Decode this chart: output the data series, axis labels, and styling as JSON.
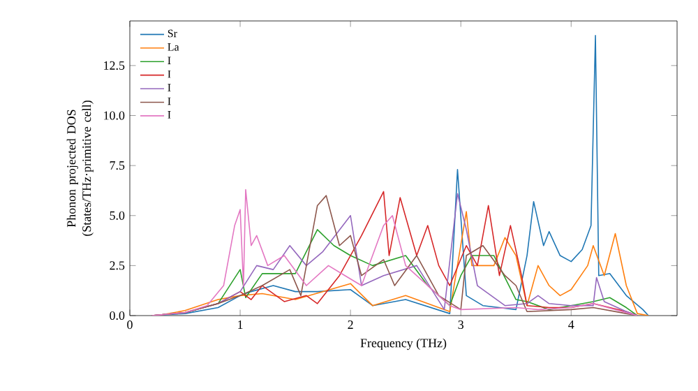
{
  "chart_data": {
    "type": "line",
    "xlabel": "Frequency (THz)",
    "ylabel": "Phonon projected DOS\n(States/THz·primitive cell)",
    "xlim": [
      0,
      4.96
    ],
    "ylim": [
      0,
      14.73
    ],
    "xticks": [
      0,
      1,
      2,
      3,
      4
    ],
    "yticks": [
      {
        "value": 0,
        "label": "0.0"
      },
      {
        "value": 2.5,
        "label": "2.5"
      },
      {
        "value": 5,
        "label": "5.0"
      },
      {
        "value": 7.5,
        "label": "7.5"
      },
      {
        "value": 10,
        "label": "10.0"
      },
      {
        "value": 12.5,
        "label": "12.5"
      }
    ],
    "legend": "top left",
    "grid": false,
    "marker": "none",
    "line_style": "solid",
    "series": [
      {
        "name": "Sr",
        "color": "#1f77b4",
        "x": [
          0.2,
          0.5,
          0.8,
          1.0,
          1.1,
          1.3,
          1.5,
          1.7,
          2.0,
          2.2,
          2.5,
          2.9,
          2.97,
          3.05,
          3.2,
          3.5,
          3.6,
          3.66,
          3.75,
          3.8,
          3.9,
          4.0,
          4.1,
          4.18,
          4.22,
          4.25,
          4.35,
          4.5,
          4.65,
          4.7
        ],
        "values": [
          0,
          0.1,
          0.4,
          1.0,
          1.2,
          1.5,
          1.2,
          1.2,
          1.3,
          0.5,
          0.8,
          0.1,
          7.3,
          1.0,
          0.5,
          0.3,
          3.0,
          5.7,
          3.5,
          4.2,
          3.0,
          2.7,
          3.3,
          4.5,
          14.0,
          2.0,
          2.1,
          1.0,
          0.3,
          0
        ]
      },
      {
        "name": "La",
        "color": "#ff7f0e",
        "x": [
          0.3,
          0.5,
          0.8,
          1.0,
          1.2,
          1.5,
          2.0,
          2.2,
          2.5,
          2.9,
          3.05,
          3.1,
          3.3,
          3.4,
          3.5,
          3.6,
          3.7,
          3.8,
          3.9,
          4.0,
          4.15,
          4.2,
          4.3,
          4.4,
          4.5,
          4.6,
          4.7
        ],
        "values": [
          0.05,
          0.25,
          0.8,
          1.0,
          1.1,
          0.8,
          1.6,
          0.5,
          1.0,
          0.2,
          5.2,
          2.5,
          2.5,
          3.9,
          3.0,
          0.5,
          2.5,
          1.5,
          1.0,
          1.3,
          2.5,
          3.5,
          2.0,
          4.1,
          1.5,
          0.1,
          0
        ]
      },
      {
        "name": "I",
        "color": "#2ca02c",
        "x": [
          0.2,
          0.5,
          0.8,
          1.0,
          1.05,
          1.2,
          1.5,
          1.7,
          1.85,
          2.0,
          2.2,
          2.5,
          2.7,
          2.9,
          3.0,
          3.1,
          3.3,
          3.5,
          3.6,
          3.8,
          4.0,
          4.2,
          4.35,
          4.5,
          4.6
        ],
        "values": [
          0,
          0.15,
          0.6,
          2.3,
          0.9,
          2.1,
          2.1,
          4.3,
          3.5,
          3.0,
          2.5,
          3.0,
          1.5,
          0.5,
          2.0,
          3.0,
          3.0,
          0.8,
          0.7,
          0.3,
          0.5,
          0.7,
          0.9,
          0.4,
          0
        ]
      },
      {
        "name": "I",
        "color": "#d62728",
        "x": [
          0.2,
          0.5,
          0.8,
          1.0,
          1.1,
          1.2,
          1.4,
          1.6,
          1.7,
          1.9,
          2.1,
          2.3,
          2.35,
          2.45,
          2.6,
          2.7,
          2.8,
          2.9,
          3.05,
          3.15,
          3.25,
          3.35,
          3.45,
          3.55,
          3.6,
          3.8,
          4.0,
          4.2,
          4.5,
          4.6
        ],
        "values": [
          0,
          0.15,
          0.6,
          1.2,
          0.8,
          1.5,
          0.7,
          1.0,
          0.6,
          2.0,
          4.0,
          6.2,
          3.0,
          5.9,
          3.0,
          4.5,
          2.5,
          1.5,
          3.5,
          2.5,
          5.5,
          2.0,
          4.5,
          2.0,
          0.5,
          0.4,
          0.4,
          0.6,
          0.2,
          0
        ]
      },
      {
        "name": "I",
        "color": "#9467bd",
        "x": [
          0.2,
          0.5,
          0.8,
          1.0,
          1.15,
          1.3,
          1.45,
          1.6,
          1.75,
          2.0,
          2.1,
          2.3,
          2.6,
          2.85,
          2.97,
          3.05,
          3.15,
          3.4,
          3.6,
          3.7,
          3.8,
          4.0,
          4.2,
          4.23,
          4.3,
          4.5,
          4.6
        ],
        "values": [
          0,
          0.15,
          0.6,
          1.2,
          2.5,
          2.3,
          3.5,
          2.5,
          3.2,
          5.0,
          1.5,
          2.0,
          2.5,
          0.3,
          6.1,
          4.3,
          1.5,
          0.5,
          0.6,
          1.0,
          0.6,
          0.5,
          0.5,
          1.9,
          0.7,
          0.2,
          0
        ]
      },
      {
        "name": "I",
        "color": "#8c564b",
        "x": [
          0.2,
          0.5,
          0.8,
          1.0,
          1.2,
          1.45,
          1.55,
          1.7,
          1.78,
          1.9,
          2.0,
          2.1,
          2.3,
          2.4,
          2.6,
          2.8,
          3.0,
          3.05,
          3.2,
          3.4,
          3.5,
          3.6,
          4.0,
          4.2,
          4.5,
          4.6
        ],
        "values": [
          0,
          0.15,
          0.6,
          1.0,
          1.5,
          2.3,
          1.0,
          5.5,
          6.0,
          3.5,
          4.0,
          2.0,
          2.8,
          1.5,
          3.0,
          1.0,
          0.3,
          3.0,
          3.5,
          2.0,
          1.5,
          0.2,
          0.3,
          0.4,
          0.1,
          0
        ]
      },
      {
        "name": "I",
        "color": "#e377c2",
        "x": [
          0.2,
          0.5,
          0.7,
          0.85,
          0.95,
          1.0,
          1.03,
          1.05,
          1.1,
          1.15,
          1.25,
          1.4,
          1.6,
          1.8,
          1.95,
          2.1,
          2.3,
          2.38,
          2.5,
          2.7,
          2.9,
          3.0,
          3.5,
          3.7,
          4.0,
          4.2,
          4.4,
          4.6
        ],
        "values": [
          0,
          0.15,
          0.5,
          1.5,
          4.5,
          5.3,
          1.5,
          6.3,
          3.5,
          4.0,
          2.5,
          3.0,
          1.5,
          2.5,
          2.0,
          1.5,
          4.5,
          5.0,
          2.5,
          1.5,
          0.5,
          0.3,
          0.4,
          0.3,
          0.4,
          0.6,
          0.3,
          0
        ]
      }
    ]
  }
}
